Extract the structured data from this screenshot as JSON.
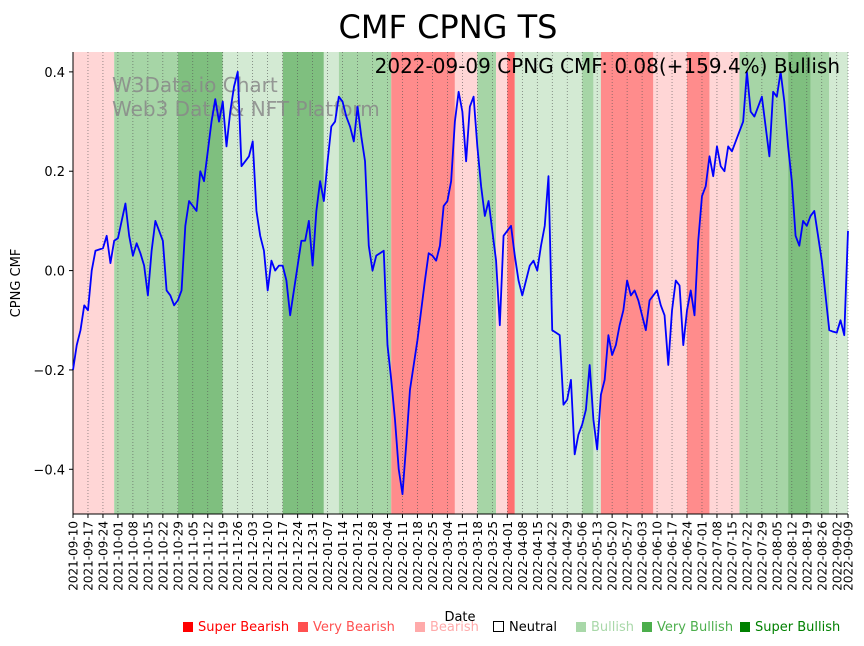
{
  "chart_data": {
    "type": "line",
    "title": "CMF CPNG TS",
    "annotation": "2022-09-09 CPNG CMF: 0.08(+159.4%) Bullish",
    "watermark": [
      "W3Data.io Chart",
      "Web3 Data & NFT Platform"
    ],
    "xlabel": "Date",
    "ylabel": "CPNG CMF",
    "ylim": [
      -0.49,
      0.44
    ],
    "yticks": [
      0.4,
      0.2,
      0.0,
      -0.2,
      -0.4
    ],
    "ytick_labels": [
      "0.4",
      "0.2",
      "0.0",
      "−0.2",
      "−0.4"
    ],
    "xticks": [
      "2021-09-10",
      "2021-09-17",
      "2021-09-24",
      "2021-10-01",
      "2021-10-08",
      "2021-10-15",
      "2021-10-22",
      "2021-10-29",
      "2021-11-05",
      "2021-11-12",
      "2021-11-19",
      "2021-11-26",
      "2021-12-03",
      "2021-12-10",
      "2021-12-17",
      "2021-12-24",
      "2021-12-31",
      "2022-01-07",
      "2022-01-14",
      "2022-01-21",
      "2022-01-28",
      "2022-02-04",
      "2022-02-11",
      "2022-02-18",
      "2022-02-25",
      "2022-03-04",
      "2022-03-11",
      "2022-03-18",
      "2022-03-25",
      "2022-04-01",
      "2022-04-08",
      "2022-04-15",
      "2022-04-22",
      "2022-04-29",
      "2022-05-06",
      "2022-05-13",
      "2022-05-20",
      "2022-05-27",
      "2022-06-03",
      "2022-06-10",
      "2022-06-17",
      "2022-06-24",
      "2022-07-01",
      "2022-07-08",
      "2022-07-15",
      "2022-07-22",
      "2022-07-29",
      "2022-08-05",
      "2022-08-12",
      "2022-08-19",
      "2022-08-26",
      "2022-09-02",
      "2022-09-09"
    ],
    "series": [
      {
        "name": "CPNG CMF",
        "color": "#0000ff",
        "points": [
          [
            0,
            -0.2
          ],
          [
            1,
            -0.15
          ],
          [
            2,
            -0.12
          ],
          [
            3,
            -0.07
          ],
          [
            4,
            -0.08
          ],
          [
            5,
            0.0
          ],
          [
            6,
            0.04
          ],
          [
            8,
            0.045
          ],
          [
            9,
            0.07
          ],
          [
            10,
            0.015
          ],
          [
            11,
            0.06
          ],
          [
            12,
            0.065
          ],
          [
            13,
            0.1
          ],
          [
            14,
            0.135
          ],
          [
            15,
            0.07
          ],
          [
            16,
            0.03
          ],
          [
            17,
            0.055
          ],
          [
            18,
            0.035
          ],
          [
            19,
            0.01
          ],
          [
            20,
            -0.05
          ],
          [
            21,
            0.04
          ],
          [
            22,
            0.1
          ],
          [
            23,
            0.08
          ],
          [
            24,
            0.06
          ],
          [
            25,
            -0.04
          ],
          [
            26,
            -0.05
          ],
          [
            27,
            -0.07
          ],
          [
            28,
            -0.06
          ],
          [
            29,
            -0.04
          ],
          [
            30,
            0.09
          ],
          [
            31,
            0.14
          ],
          [
            32,
            0.13
          ],
          [
            33,
            0.12
          ],
          [
            34,
            0.2
          ],
          [
            35,
            0.18
          ],
          [
            36,
            0.24
          ],
          [
            37,
            0.3
          ],
          [
            38,
            0.345
          ],
          [
            39,
            0.3
          ],
          [
            40,
            0.34
          ],
          [
            41,
            0.25
          ],
          [
            42,
            0.32
          ],
          [
            43,
            0.37
          ],
          [
            44,
            0.4
          ],
          [
            45,
            0.21
          ],
          [
            46,
            0.22
          ],
          [
            47,
            0.23
          ],
          [
            48,
            0.26
          ],
          [
            49,
            0.12
          ],
          [
            50,
            0.07
          ],
          [
            51,
            0.04
          ],
          [
            52,
            -0.04
          ],
          [
            53,
            0.02
          ],
          [
            54,
            0.0
          ],
          [
            55,
            0.01
          ],
          [
            56,
            0.01
          ],
          [
            57,
            -0.02
          ],
          [
            58,
            -0.09
          ],
          [
            59,
            -0.04
          ],
          [
            60,
            0.01
          ],
          [
            61,
            0.06
          ],
          [
            62,
            0.06
          ],
          [
            63,
            0.1
          ],
          [
            64,
            0.01
          ],
          [
            65,
            0.12
          ],
          [
            66,
            0.18
          ],
          [
            67,
            0.14
          ],
          [
            68,
            0.22
          ],
          [
            69,
            0.29
          ],
          [
            70,
            0.3
          ],
          [
            71,
            0.35
          ],
          [
            72,
            0.34
          ],
          [
            73,
            0.31
          ],
          [
            74,
            0.29
          ],
          [
            75,
            0.26
          ],
          [
            76,
            0.33
          ],
          [
            77,
            0.27
          ],
          [
            78,
            0.22
          ],
          [
            79,
            0.05
          ],
          [
            80,
            0.0
          ],
          [
            81,
            0.03
          ],
          [
            82,
            0.035
          ],
          [
            83,
            0.04
          ],
          [
            84,
            -0.15
          ],
          [
            85,
            -0.22
          ],
          [
            86,
            -0.3
          ],
          [
            87,
            -0.4
          ],
          [
            88,
            -0.45
          ],
          [
            89,
            -0.35
          ],
          [
            90,
            -0.24
          ],
          [
            91,
            -0.19
          ],
          [
            92,
            -0.14
          ],
          [
            93,
            -0.08
          ],
          [
            94,
            -0.02
          ],
          [
            95,
            0.035
          ],
          [
            96,
            0.03
          ],
          [
            97,
            0.02
          ],
          [
            98,
            0.05
          ],
          [
            99,
            0.13
          ],
          [
            100,
            0.14
          ],
          [
            101,
            0.18
          ],
          [
            102,
            0.3
          ],
          [
            103,
            0.36
          ],
          [
            104,
            0.32
          ],
          [
            105,
            0.22
          ],
          [
            106,
            0.33
          ],
          [
            107,
            0.35
          ],
          [
            108,
            0.25
          ],
          [
            109,
            0.17
          ],
          [
            110,
            0.11
          ],
          [
            111,
            0.14
          ],
          [
            112,
            0.08
          ],
          [
            113,
            0.02
          ],
          [
            114,
            -0.11
          ],
          [
            115,
            0.07
          ],
          [
            116,
            0.08
          ],
          [
            117,
            0.09
          ],
          [
            118,
            0.03
          ],
          [
            119,
            -0.02
          ],
          [
            120,
            -0.05
          ],
          [
            121,
            -0.02
          ],
          [
            122,
            0.01
          ],
          [
            123,
            0.02
          ],
          [
            124,
            0.0
          ],
          [
            125,
            0.05
          ],
          [
            126,
            0.09
          ],
          [
            127,
            0.19
          ],
          [
            128,
            -0.12
          ],
          [
            129,
            -0.125
          ],
          [
            130,
            -0.13
          ],
          [
            131,
            -0.27
          ],
          [
            132,
            -0.26
          ],
          [
            133,
            -0.22
          ],
          [
            134,
            -0.37
          ],
          [
            135,
            -0.33
          ],
          [
            136,
            -0.31
          ],
          [
            137,
            -0.28
          ],
          [
            138,
            -0.19
          ],
          [
            139,
            -0.3
          ],
          [
            140,
            -0.36
          ],
          [
            141,
            -0.25
          ],
          [
            142,
            -0.22
          ],
          [
            143,
            -0.13
          ],
          [
            144,
            -0.17
          ],
          [
            145,
            -0.15
          ],
          [
            146,
            -0.11
          ],
          [
            147,
            -0.08
          ],
          [
            148,
            -0.02
          ],
          [
            149,
            -0.05
          ],
          [
            150,
            -0.04
          ],
          [
            151,
            -0.06
          ],
          [
            152,
            -0.09
          ],
          [
            153,
            -0.12
          ],
          [
            154,
            -0.06
          ],
          [
            155,
            -0.05
          ],
          [
            156,
            -0.04
          ],
          [
            157,
            -0.07
          ],
          [
            158,
            -0.09
          ],
          [
            159,
            -0.19
          ],
          [
            160,
            -0.08
          ],
          [
            161,
            -0.02
          ],
          [
            162,
            -0.03
          ],
          [
            163,
            -0.15
          ],
          [
            164,
            -0.08
          ],
          [
            165,
            -0.04
          ],
          [
            166,
            -0.09
          ],
          [
            167,
            0.06
          ],
          [
            168,
            0.15
          ],
          [
            169,
            0.17
          ],
          [
            170,
            0.23
          ],
          [
            171,
            0.19
          ],
          [
            172,
            0.25
          ],
          [
            173,
            0.21
          ],
          [
            174,
            0.2
          ],
          [
            175,
            0.25
          ],
          [
            176,
            0.24
          ],
          [
            177,
            0.26
          ],
          [
            178,
            0.28
          ],
          [
            179,
            0.3
          ],
          [
            180,
            0.4
          ],
          [
            181,
            0.32
          ],
          [
            182,
            0.31
          ],
          [
            183,
            0.33
          ],
          [
            184,
            0.35
          ],
          [
            185,
            0.29
          ],
          [
            186,
            0.23
          ],
          [
            187,
            0.36
          ],
          [
            188,
            0.35
          ],
          [
            189,
            0.4
          ],
          [
            190,
            0.34
          ],
          [
            191,
            0.25
          ],
          [
            192,
            0.18
          ],
          [
            193,
            0.07
          ],
          [
            194,
            0.05
          ],
          [
            195,
            0.1
          ],
          [
            196,
            0.09
          ],
          [
            197,
            0.11
          ],
          [
            198,
            0.12
          ],
          [
            199,
            0.07
          ],
          [
            200,
            0.02
          ],
          [
            201,
            -0.05
          ],
          [
            202,
            -0.12
          ],
          [
            203,
            -0.123
          ],
          [
            204,
            -0.125
          ],
          [
            205,
            -0.1
          ],
          [
            206,
            -0.13
          ],
          [
            207,
            0.08
          ]
        ]
      }
    ],
    "x_range": [
      0,
      207
    ],
    "tick_positions": [
      0,
      4,
      8,
      12,
      16,
      20,
      24,
      28,
      32,
      36,
      40,
      44,
      48,
      52,
      56,
      60,
      64,
      68,
      72,
      76,
      80,
      84,
      88,
      92,
      96,
      100,
      104,
      108,
      112,
      116,
      120,
      124,
      128,
      132,
      136,
      140,
      144,
      148,
      152,
      156,
      160,
      164,
      168,
      172,
      176,
      180,
      184,
      188,
      192,
      196,
      200,
      204,
      207
    ],
    "sentiment_bands": [
      {
        "from": 0,
        "to": 11,
        "state": "Bearish"
      },
      {
        "from": 11,
        "to": 28,
        "state": "Very Bullish"
      },
      {
        "from": 28,
        "to": 40,
        "state": "Super Bullish"
      },
      {
        "from": 40,
        "to": 56,
        "state": "Bullish"
      },
      {
        "from": 56,
        "to": 67,
        "state": "Super Bullish"
      },
      {
        "from": 67,
        "to": 71,
        "state": "Bullish"
      },
      {
        "from": 71,
        "to": 85,
        "state": "Very Bullish"
      },
      {
        "from": 85,
        "to": 102,
        "state": "Very Bearish"
      },
      {
        "from": 102,
        "to": 108,
        "state": "Bearish"
      },
      {
        "from": 108,
        "to": 113,
        "state": "Very Bullish"
      },
      {
        "from": 113,
        "to": 116,
        "state": "Bearish"
      },
      {
        "from": 116,
        "to": 118,
        "state": "Super Bearish"
      },
      {
        "from": 118,
        "to": 136,
        "state": "Bullish"
      },
      {
        "from": 136,
        "to": 139,
        "state": "Very Bullish"
      },
      {
        "from": 139,
        "to": 141,
        "state": "Bullish"
      },
      {
        "from": 141,
        "to": 155,
        "state": "Very Bearish"
      },
      {
        "from": 155,
        "to": 160,
        "state": "Bearish"
      },
      {
        "from": 160,
        "to": 164,
        "state": "Bearish"
      },
      {
        "from": 164,
        "to": 170,
        "state": "Very Bearish"
      },
      {
        "from": 170,
        "to": 178,
        "state": "Bearish"
      },
      {
        "from": 178,
        "to": 191,
        "state": "Very Bullish"
      },
      {
        "from": 191,
        "to": 197,
        "state": "Super Bullish"
      },
      {
        "from": 197,
        "to": 202,
        "state": "Very Bullish"
      },
      {
        "from": 202,
        "to": 207,
        "state": "Bullish"
      }
    ],
    "legend": [
      {
        "label": "Super Bearish",
        "color": "#ff0000"
      },
      {
        "label": "Very Bearish",
        "color": "#ff5050"
      },
      {
        "label": "Bearish",
        "color": "#ffaaaa"
      },
      {
        "label": "Neutral",
        "color": "#000000"
      },
      {
        "label": "Bullish",
        "color": "#a9d8a9"
      },
      {
        "label": "Very Bullish",
        "color": "#4cae4c"
      },
      {
        "label": "Super Bullish",
        "color": "#008000"
      }
    ]
  }
}
